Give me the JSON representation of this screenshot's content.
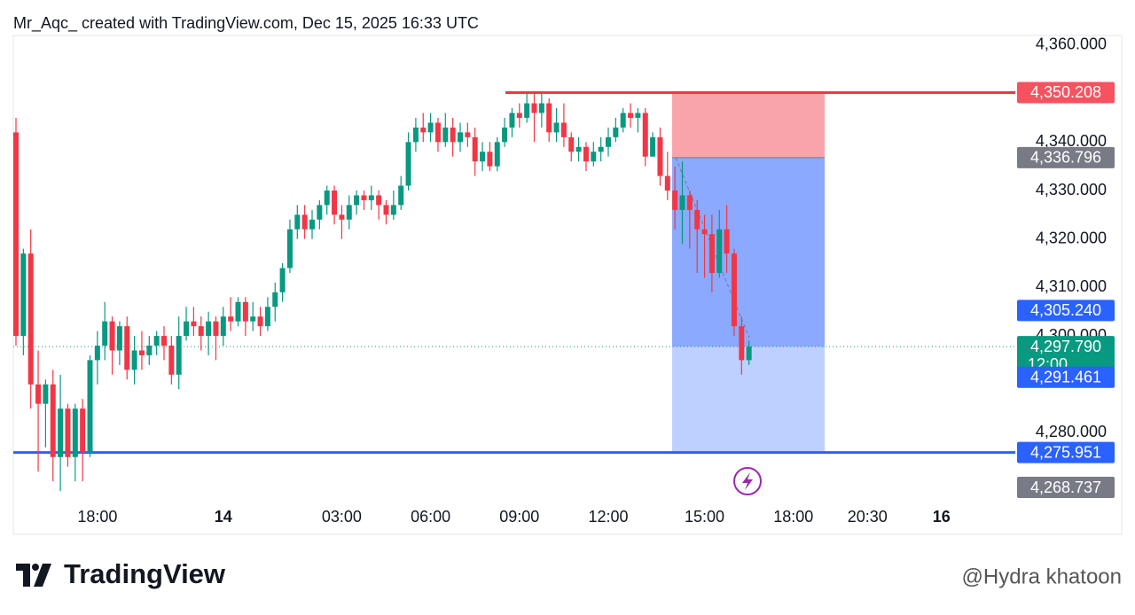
{
  "header": "Mr_Aqc_ created with TradingView.com, Dec 15, 2025 16:33 UTC",
  "brand": "TradingView",
  "watermark": "@Hydra khatoon",
  "chart_data": {
    "type": "candlestick",
    "up_color": "#089981",
    "down_color": "#f23645",
    "categories": [
      null,
      null,
      null,
      null,
      null,
      null,
      null,
      null,
      null,
      null,
      null,
      "18:00",
      null,
      null,
      null,
      null,
      null,
      null,
      null,
      null,
      null,
      null,
      null,
      null,
      null,
      null,
      null,
      null,
      "14",
      null,
      null,
      null,
      null,
      null,
      null,
      null,
      null,
      null,
      null,
      null,
      null,
      null,
      null,
      null,
      "03:00",
      null,
      null,
      null,
      null,
      null,
      null,
      null,
      null,
      null,
      null,
      null,
      "06:00",
      null,
      null,
      null,
      null,
      null,
      null,
      null,
      null,
      null,
      null,
      null,
      "09:00",
      null,
      null,
      null,
      null,
      null,
      null,
      null,
      null,
      null,
      null,
      null,
      "12:00",
      null,
      null,
      null,
      null,
      null,
      null,
      null,
      null,
      null,
      null,
      null,
      null,
      "15:00",
      null,
      null,
      null,
      null,
      null,
      null,
      null,
      null,
      null,
      null,
      null,
      "18:00",
      null,
      null,
      null,
      null,
      null,
      null,
      null,
      null,
      null,
      "20:30",
      null,
      null,
      null,
      null,
      null,
      null,
      null,
      null,
      null,
      "16"
    ],
    "open": [
      4342,
      4300,
      4317,
      4290,
      4286,
      4290,
      4275,
      4285,
      4275,
      4285,
      4276,
      4295,
      4298,
      4303,
      4297,
      4302,
      4293,
      4297,
      4296,
      4298,
      4300,
      4298,
      4292,
      4300,
      4303,
      4302,
      4300,
      4303,
      4300,
      4304,
      4303,
      4307,
      4303,
      4304,
      4302,
      4306,
      4309,
      4314,
      4322,
      4325,
      4322,
      4324,
      4327,
      4330,
      4325,
      4324,
      4327,
      4329,
      4328,
      4329,
      4327,
      4325,
      4327,
      4331,
      4340,
      4343,
      4342,
      4344,
      4340,
      4343,
      4340,
      4342,
      4341,
      4336,
      4338,
      4335,
      4340,
      4343,
      4346,
      4345,
      4348,
      4346,
      4348,
      4342,
      4344,
      4341,
      4338,
      4339,
      4336,
      4338,
      4339,
      4341,
      4343,
      4346,
      4345,
      4346,
      4337,
      4341,
      4333,
      4330,
      4326,
      4329,
      4326,
      4322,
      4321,
      4313,
      4322,
      4317,
      4302,
      4295,
      null,
      null,
      null,
      null,
      null,
      null,
      null,
      null,
      null,
      null,
      null,
      null,
      null,
      null,
      null,
      null,
      null,
      null,
      null,
      null,
      null,
      null,
      null,
      null,
      null,
      null
    ],
    "high": [
      4345,
      4318,
      4322,
      4297,
      4291,
      4293,
      4292,
      4286,
      4286,
      4287,
      4296,
      4301,
      4307,
      4304,
      4303,
      4304,
      4300,
      4301,
      4300,
      4301,
      4302,
      4300,
      4304,
      4306,
      4306,
      4304,
      4305,
      4304,
      4306,
      4308,
      4308,
      4308,
      4307,
      4306,
      4308,
      4311,
      4315,
      4324,
      4327,
      4327,
      4326,
      4328,
      4331,
      4331,
      4327,
      4329,
      4330,
      4330,
      4331,
      4330,
      4328,
      4330,
      4333,
      4342,
      4345,
      4346,
      4346,
      4345,
      4346,
      4345,
      4344,
      4344,
      4343,
      4340,
      4340,
      4341,
      4345,
      4347,
      4348,
      4350,
      4350,
      4350,
      4349,
      4347,
      4348,
      4342,
      4341,
      4340,
      4340,
      4341,
      4343,
      4345,
      4347,
      4348,
      4347,
      4347,
      4342,
      4343,
      4338,
      4335,
      4336,
      4330,
      4328,
      4325,
      4325,
      4326,
      4327,
      4318,
      4304,
      4299,
      null,
      null,
      null,
      null,
      null,
      null,
      null,
      null,
      null,
      null,
      null,
      null,
      null,
      null,
      null,
      null,
      null,
      null,
      null,
      null,
      null,
      null,
      null,
      null,
      null,
      null
    ],
    "low": [
      4298,
      4296,
      4285,
      4272,
      4277,
      4270,
      4268,
      4273,
      4270,
      4270,
      4275,
      4290,
      4295,
      4292,
      4294,
      4291,
      4290,
      4293,
      4294,
      4296,
      4295,
      4290,
      4289,
      4299,
      4300,
      4297,
      4296,
      4295,
      4298,
      4301,
      4302,
      4300,
      4301,
      4300,
      4301,
      4303,
      4307,
      4313,
      4320,
      4320,
      4320,
      4322,
      4325,
      4323,
      4320,
      4322,
      4325,
      4326,
      4326,
      4324,
      4323,
      4324,
      4326,
      4330,
      4338,
      4340,
      4340,
      4338,
      4339,
      4337,
      4338,
      4339,
      4333,
      4334,
      4334,
      4334,
      4339,
      4341,
      4343,
      4344,
      4340,
      4343,
      4340,
      4340,
      4339,
      4336,
      4336,
      4334,
      4335,
      4336,
      4337,
      4340,
      4342,
      4343,
      4342,
      4335,
      4337,
      4331,
      4328,
      4322,
      4319,
      4318,
      4313,
      4312,
      4309,
      4312,
      4313,
      4300,
      4292,
      4294,
      null,
      null,
      null,
      null,
      null,
      null,
      null,
      null,
      null,
      null,
      null,
      null,
      null,
      null,
      null,
      null,
      null,
      null,
      null,
      null,
      null,
      null,
      null,
      null,
      null,
      null
    ],
    "close": [
      4300,
      4317,
      4290,
      4286,
      4290,
      4275,
      4285,
      4275,
      4285,
      4276,
      4295,
      4298,
      4303,
      4297,
      4302,
      4293,
      4297,
      4296,
      4298,
      4300,
      4298,
      4292,
      4300,
      4303,
      4302,
      4300,
      4303,
      4300,
      4304,
      4303,
      4307,
      4303,
      4304,
      4302,
      4306,
      4309,
      4314,
      4322,
      4325,
      4322,
      4324,
      4327,
      4330,
      4325,
      4324,
      4327,
      4329,
      4328,
      4329,
      4327,
      4325,
      4327,
      4331,
      4340,
      4343,
      4342,
      4344,
      4340,
      4343,
      4340,
      4342,
      4341,
      4336,
      4338,
      4335,
      4340,
      4343,
      4346,
      4345,
      4348,
      4346,
      4348,
      4342,
      4344,
      4341,
      4338,
      4339,
      4336,
      4338,
      4339,
      4341,
      4343,
      4346,
      4345,
      4346,
      4337,
      4341,
      4333,
      4330,
      4326,
      4329,
      4326,
      4322,
      4321,
      4313,
      4322,
      4317,
      4302,
      4295,
      4297.79,
      null,
      null,
      null,
      null,
      null,
      null,
      null,
      null,
      null,
      null,
      null,
      null,
      null,
      null,
      null,
      null,
      null,
      null,
      null,
      null,
      null,
      null,
      null,
      null,
      null,
      null
    ],
    "ylim": [
      4266,
      4362
    ],
    "yticks": [
      {
        "value": 4360,
        "label": "4,360.000"
      },
      {
        "value": 4340,
        "label": "4,340.000"
      },
      {
        "value": 4330,
        "label": "4,330.000"
      },
      {
        "value": 4320,
        "label": "4,320.000"
      },
      {
        "value": 4310,
        "label": "4,310.000"
      },
      {
        "value": 4300,
        "label": "4,300.000"
      },
      {
        "value": 4280,
        "label": "4,280.000"
      }
    ],
    "price_labels": [
      {
        "value": 4350.208,
        "label": "4,350.208",
        "color": "#f7525f"
      },
      {
        "value": 4336.796,
        "label": "4,336.796",
        "color": "#787b86"
      },
      {
        "value": 4305.24,
        "label": "4,305.240",
        "color": "#2962ff"
      },
      {
        "value": 4297.79,
        "label": "4,297.790",
        "color": "#089981"
      },
      {
        "value": 4291.461,
        "label": "4,291.461",
        "color": "#2962ff"
      },
      {
        "value": 4275.951,
        "label": "4,275.951",
        "color": "#2962ff"
      },
      {
        "value": 4268.737,
        "label": "4,268.737",
        "color": "#787b86"
      }
    ],
    "countdown": "12:00"
  }
}
